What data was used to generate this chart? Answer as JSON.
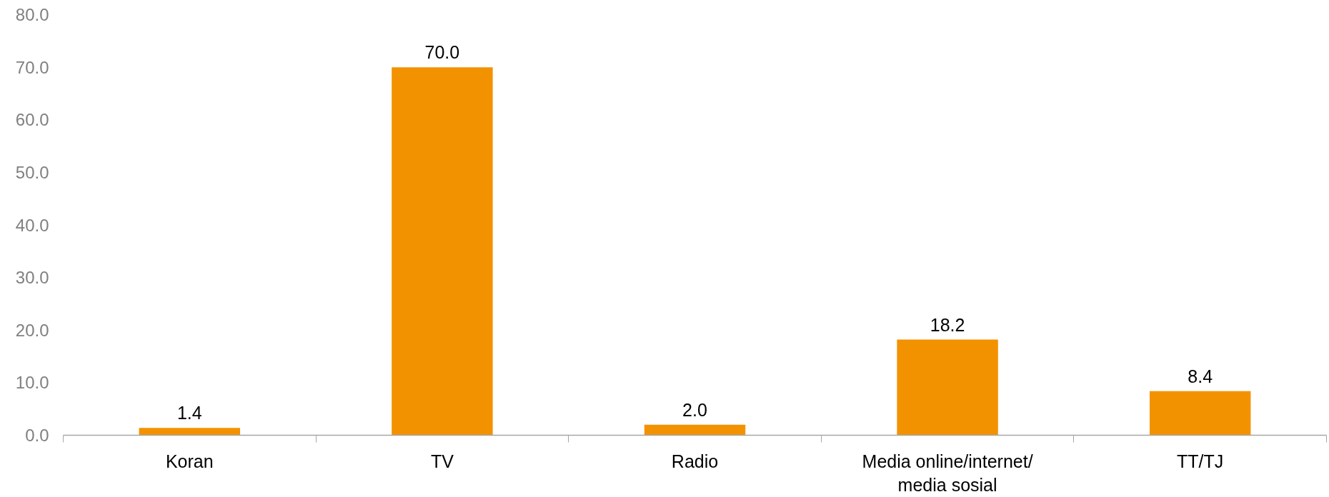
{
  "chart_data": {
    "type": "bar",
    "categories": [
      "Koran",
      "TV",
      "Radio",
      "Media online/internet/\nmedia sosial",
      "TT/TJ"
    ],
    "values": [
      1.4,
      70.0,
      2.0,
      18.2,
      8.4
    ],
    "value_labels": [
      "1.4",
      "70.0",
      "2.0",
      "18.2",
      "8.4"
    ],
    "color": "#f39200",
    "ylim": [
      0,
      80
    ],
    "yticks": [
      {
        "value": 0,
        "label": "0.0"
      },
      {
        "value": 10,
        "label": "10.0"
      },
      {
        "value": 20,
        "label": "20.0"
      },
      {
        "value": 30,
        "label": "30.0"
      },
      {
        "value": 40,
        "label": "40.0"
      },
      {
        "value": 50,
        "label": "50.0"
      },
      {
        "value": 60,
        "label": "60.0"
      },
      {
        "value": 70,
        "label": "70.0"
      },
      {
        "value": 80,
        "label": "80.0"
      }
    ]
  }
}
